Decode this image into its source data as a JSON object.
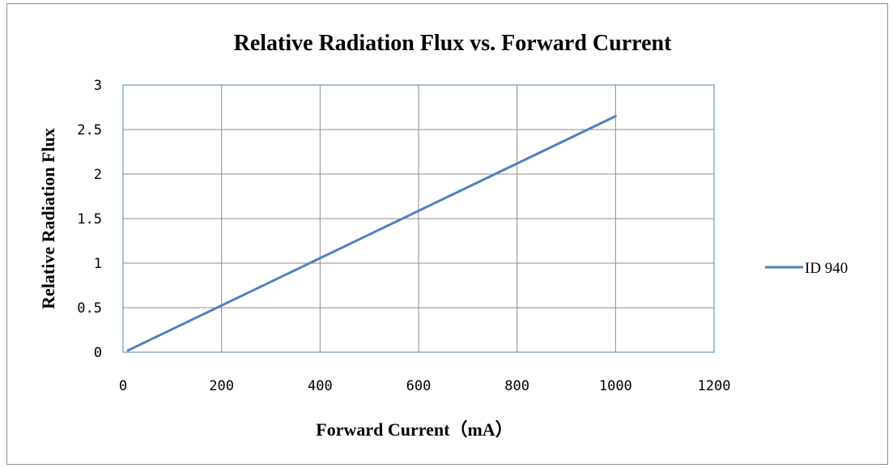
{
  "chart_data": {
    "type": "line",
    "title": "Relative Radiation Flux vs. Forward Current",
    "xlabel": "Forward Current（mA）",
    "ylabel": "Relative Radiation Flux",
    "xlim": [
      0,
      1200
    ],
    "ylim": [
      0,
      3
    ],
    "x_ticks": [
      "0",
      "200",
      "400",
      "600",
      "800",
      "1000",
      "1200"
    ],
    "y_ticks": [
      "0",
      "0.5",
      "1",
      "1.5",
      "2",
      "2.5",
      "3"
    ],
    "grid": true,
    "legend_position": "right",
    "series": [
      {
        "name": "ID 940",
        "color": "#4f81bd",
        "x": [
          10,
          1000
        ],
        "y": [
          0.02,
          2.65
        ]
      }
    ]
  }
}
